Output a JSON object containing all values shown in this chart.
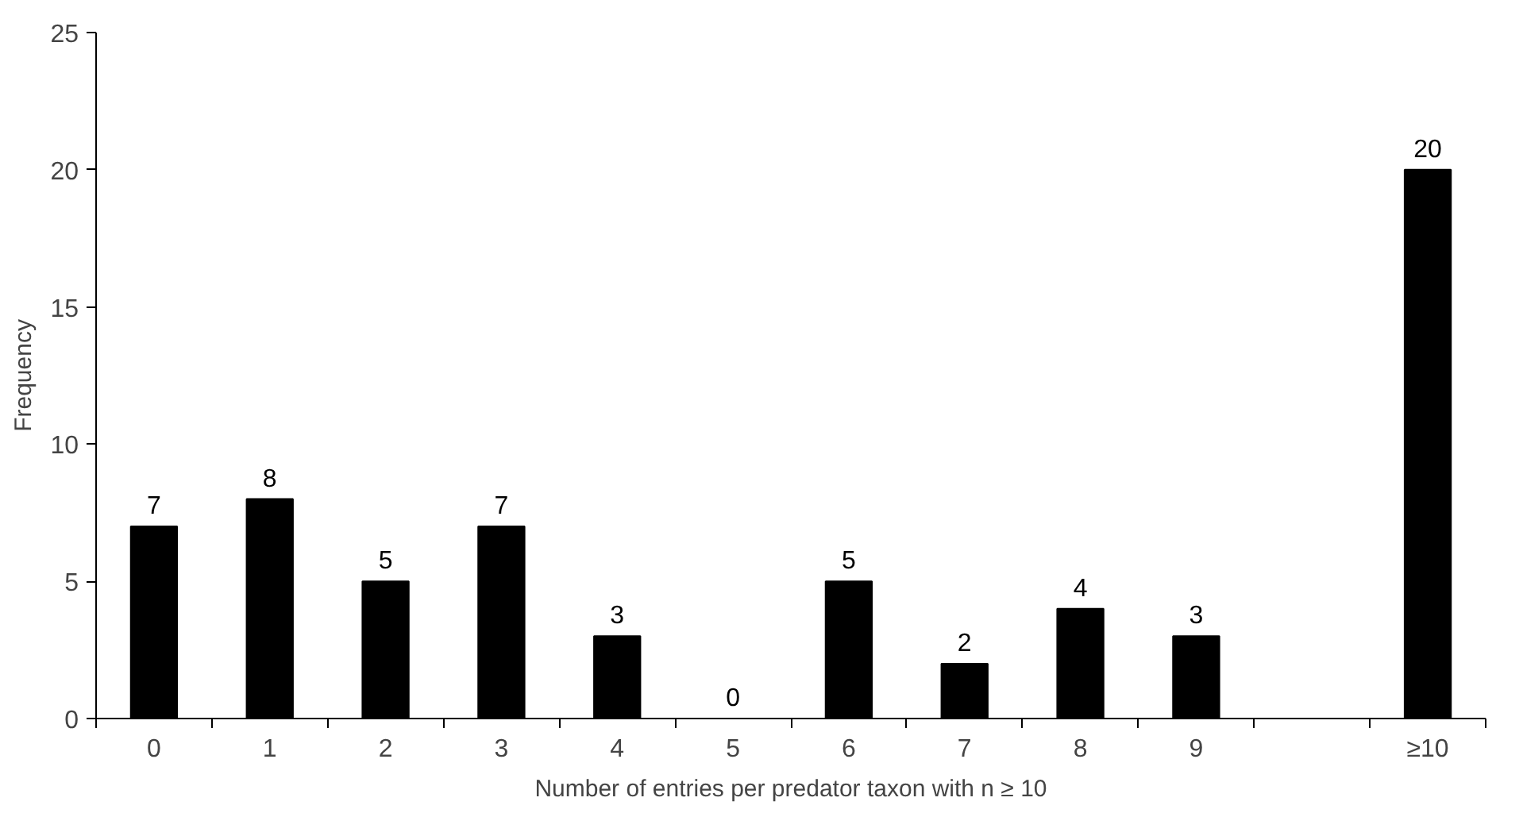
{
  "chart_data": {
    "type": "bar",
    "xlabel": "Number of entries per predator taxon with n ≥ 10",
    "ylabel": "Frequency",
    "categories": [
      "0",
      "1",
      "2",
      "3",
      "4",
      "5",
      "6",
      "7",
      "8",
      "9",
      null,
      "≥10"
    ],
    "values": [
      7,
      8,
      5,
      7,
      3,
      0,
      5,
      2,
      4,
      3,
      null,
      20
    ],
    "color": "#000000",
    "ylim": [
      0,
      25
    ],
    "yticks": [
      0,
      5,
      10,
      15,
      20,
      25
    ],
    "grid": false,
    "data_labels": true
  }
}
